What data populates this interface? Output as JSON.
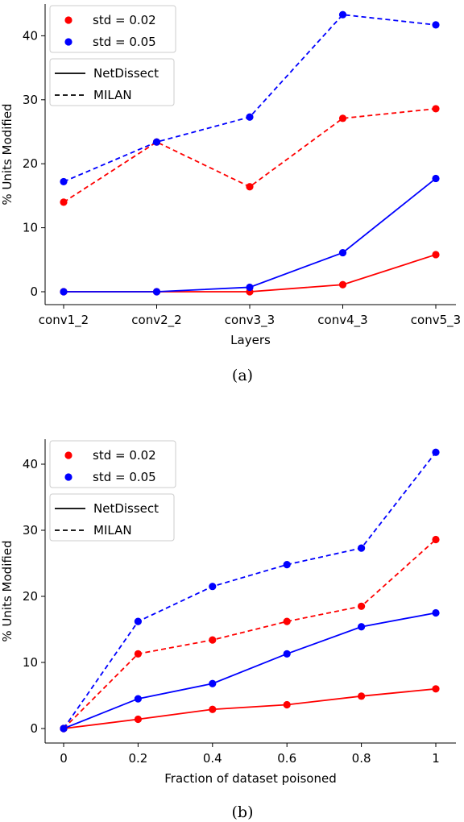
{
  "chart_data": [
    {
      "type": "line",
      "panel": "(a)",
      "caption": "(a)",
      "xlabel": "Layers",
      "ylabel": "% Units Modified",
      "categories": [
        "conv1_2",
        "conv2_2",
        "conv3_3",
        "conv4_3",
        "conv5_3"
      ],
      "ylim": [
        -2,
        45
      ],
      "yticks": [
        0,
        10,
        20,
        30,
        40
      ],
      "grid": false,
      "legend_position": "top-left",
      "legend_colors": [
        {
          "label": "std = 0.02",
          "color": "#ff0000"
        },
        {
          "label": "std = 0.05",
          "color": "#0000ff"
        }
      ],
      "legend_styles": [
        {
          "label": "NetDissect",
          "dash": "solid"
        },
        {
          "label": "MILAN",
          "dash": "dashed"
        }
      ],
      "series": [
        {
          "std": "std = 0.02",
          "method": "NetDissect",
          "color": "#ff0000",
          "dash": "solid",
          "values": [
            0,
            0,
            0,
            1.1,
            5.8
          ]
        },
        {
          "std": "std = 0.05",
          "method": "NetDissect",
          "color": "#0000ff",
          "dash": "solid",
          "values": [
            0,
            0,
            0.7,
            6.1,
            17.7
          ]
        },
        {
          "std": "std = 0.02",
          "method": "MILAN",
          "color": "#ff0000",
          "dash": "dashed",
          "values": [
            14.0,
            23.4,
            16.4,
            27.1,
            28.6
          ]
        },
        {
          "std": "std = 0.05",
          "method": "MILAN",
          "color": "#0000ff",
          "dash": "dashed",
          "values": [
            17.2,
            23.4,
            27.3,
            43.3,
            41.7
          ]
        }
      ]
    },
    {
      "type": "line",
      "panel": "(b)",
      "caption": "(b)",
      "xlabel": "Fraction of dataset poisoned",
      "ylabel": "% Units Modified",
      "x": [
        0,
        0.2,
        0.4,
        0.6,
        0.8,
        1
      ],
      "xtick_labels": [
        "0",
        "0.2",
        "0.4",
        "0.6",
        "0.8",
        "1"
      ],
      "xlim": [
        -0.05,
        1.05
      ],
      "ylim": [
        -2,
        44
      ],
      "yticks": [
        0,
        10,
        20,
        30,
        40
      ],
      "grid": false,
      "legend_position": "top-left",
      "legend_colors": [
        {
          "label": "std = 0.02",
          "color": "#ff0000"
        },
        {
          "label": "std = 0.05",
          "color": "#0000ff"
        }
      ],
      "legend_styles": [
        {
          "label": "NetDissect",
          "dash": "solid"
        },
        {
          "label": "MILAN",
          "dash": "dashed"
        }
      ],
      "series": [
        {
          "std": "std = 0.02",
          "method": "NetDissect",
          "color": "#ff0000",
          "dash": "solid",
          "values": [
            0,
            1.4,
            2.9,
            3.6,
            4.9,
            6.0
          ]
        },
        {
          "std": "std = 0.05",
          "method": "NetDissect",
          "color": "#0000ff",
          "dash": "solid",
          "values": [
            0,
            4.5,
            6.8,
            11.3,
            15.4,
            17.5
          ]
        },
        {
          "std": "std = 0.02",
          "method": "MILAN",
          "color": "#ff0000",
          "dash": "dashed",
          "values": [
            0,
            11.3,
            13.4,
            16.2,
            18.5,
            28.6
          ]
        },
        {
          "std": "std = 0.05",
          "method": "MILAN",
          "color": "#0000ff",
          "dash": "dashed",
          "values": [
            0,
            16.2,
            21.5,
            24.8,
            27.3,
            41.8
          ]
        }
      ]
    }
  ]
}
